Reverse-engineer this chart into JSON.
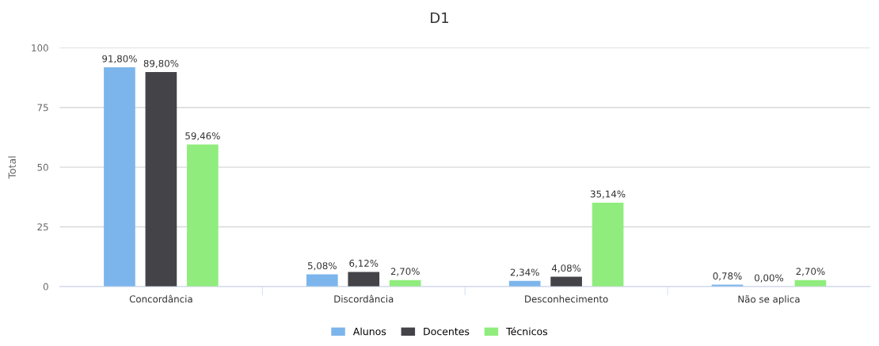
{
  "chart_data": {
    "type": "bar",
    "title": "D1",
    "ylabel": "Total",
    "categories": [
      "Concordância",
      "Discordância",
      "Desconhecimento",
      "Não se aplica"
    ],
    "series": [
      {
        "name": "Alunos",
        "color": "#7cb5ec",
        "values": [
          91.8,
          5.08,
          2.34,
          0.78
        ],
        "value_labels": [
          "91,80%",
          "5,08%",
          "2,34%",
          "0,78%"
        ]
      },
      {
        "name": "Docentes",
        "color": "#434348",
        "values": [
          89.8,
          6.12,
          4.08,
          0.0
        ],
        "value_labels": [
          "89,80%",
          "6,12%",
          "4,08%",
          "0,00%"
        ]
      },
      {
        "name": "Técnicos",
        "color": "#90ed7d",
        "values": [
          59.46,
          2.7,
          35.14,
          2.7
        ],
        "value_labels": [
          "59,46%",
          "2,70%",
          "35,14%",
          "2,70%"
        ]
      }
    ],
    "ylim": [
      0,
      100
    ],
    "yticks": [
      0,
      25,
      50,
      75,
      100
    ],
    "grid": "y",
    "legend": "bottom"
  }
}
